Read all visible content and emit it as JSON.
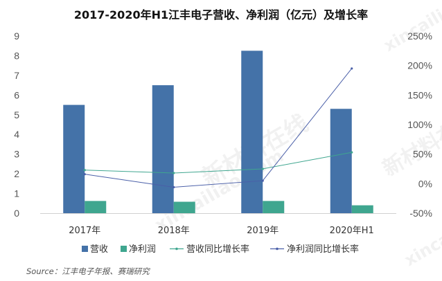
{
  "header": {
    "title": "2017-2020年H1江丰电子营收、净利润（亿元）及增长率"
  },
  "footer": {
    "source": "Source：江丰电子年报、赛瑞研究"
  },
  "watermark": {
    "brand_cn": "新材料在线",
    "brand_en": "xincailiao.com"
  },
  "colors": {
    "revenue": "#4472a8",
    "profit": "#3fa68f",
    "revenue_growth": "#3fa68f",
    "profit_growth": "#4a5fa8"
  },
  "chart_data": {
    "type": "bar",
    "title": "2017-2020年H1江丰电子营收、净利润（亿元）及增长率",
    "categories": [
      "2017年",
      "2018年",
      "2019年",
      "2020年H1"
    ],
    "series": [
      {
        "name": "营收",
        "type": "bar",
        "axis": "left",
        "values": [
          5.5,
          6.5,
          8.25,
          5.3
        ]
      },
      {
        "name": "净利润",
        "type": "bar",
        "axis": "left",
        "values": [
          0.62,
          0.58,
          0.62,
          0.4
        ]
      },
      {
        "name": "营收同比增长率",
        "type": "line",
        "axis": "right",
        "values": [
          23,
          18,
          25,
          53
        ]
      },
      {
        "name": "净利润同比增长率",
        "type": "line",
        "axis": "right",
        "values": [
          16,
          -6,
          5,
          195
        ]
      }
    ],
    "y_left": {
      "ylim": [
        0,
        9
      ],
      "ticks": [
        "0",
        "1",
        "2",
        "3",
        "4",
        "5",
        "6",
        "7",
        "8",
        "9"
      ]
    },
    "y_right": {
      "ylim": [
        -50,
        250
      ],
      "ticks": [
        "-50%",
        "0%",
        "50%",
        "100%",
        "150%",
        "200%",
        "250%"
      ]
    },
    "grid": false,
    "legend_position": "bottom"
  }
}
